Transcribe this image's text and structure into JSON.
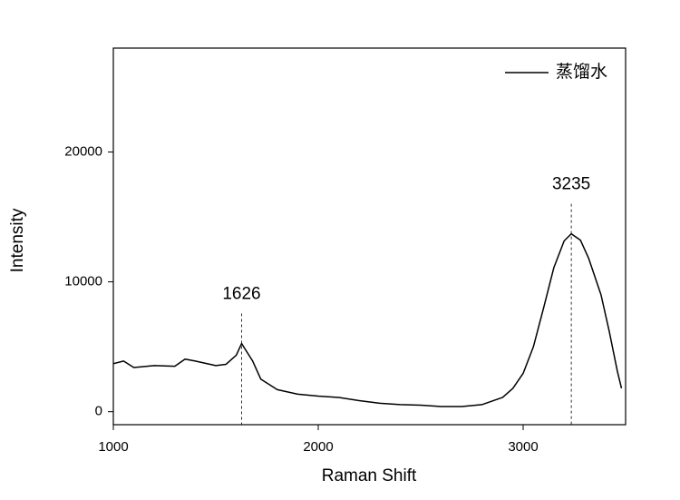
{
  "chart_data": {
    "type": "line",
    "xlabel": "Raman Shift",
    "ylabel": "Intensity",
    "xlim": [
      1000,
      3500
    ],
    "xticks": [
      1000,
      2000,
      3000
    ],
    "ylim": [
      -1000,
      28000
    ],
    "yticks": [
      0,
      10000,
      20000
    ],
    "legend": "upper right",
    "series": [
      {
        "name": "蒸馏水",
        "color": "#000000",
        "x": [
          1000,
          1050,
          1100,
          1200,
          1300,
          1350,
          1400,
          1500,
          1550,
          1600,
          1626,
          1680,
          1720,
          1800,
          1900,
          2000,
          2100,
          2200,
          2300,
          2400,
          2500,
          2600,
          2700,
          2800,
          2900,
          2950,
          3000,
          3050,
          3100,
          3150,
          3200,
          3235,
          3280,
          3320,
          3380,
          3420,
          3460,
          3480
        ],
        "values": [
          3700,
          3900,
          3400,
          3550,
          3500,
          4050,
          3900,
          3550,
          3650,
          4350,
          5250,
          3900,
          2500,
          1700,
          1350,
          1200,
          1100,
          850,
          650,
          550,
          500,
          400,
          400,
          550,
          1100,
          1800,
          2950,
          5000,
          8000,
          11100,
          13150,
          13700,
          13200,
          11800,
          9000,
          6200,
          3100,
          1800
        ]
      }
    ],
    "annotations": [
      {
        "x": 1626
      },
      {
        "x": 3235
      }
    ]
  }
}
